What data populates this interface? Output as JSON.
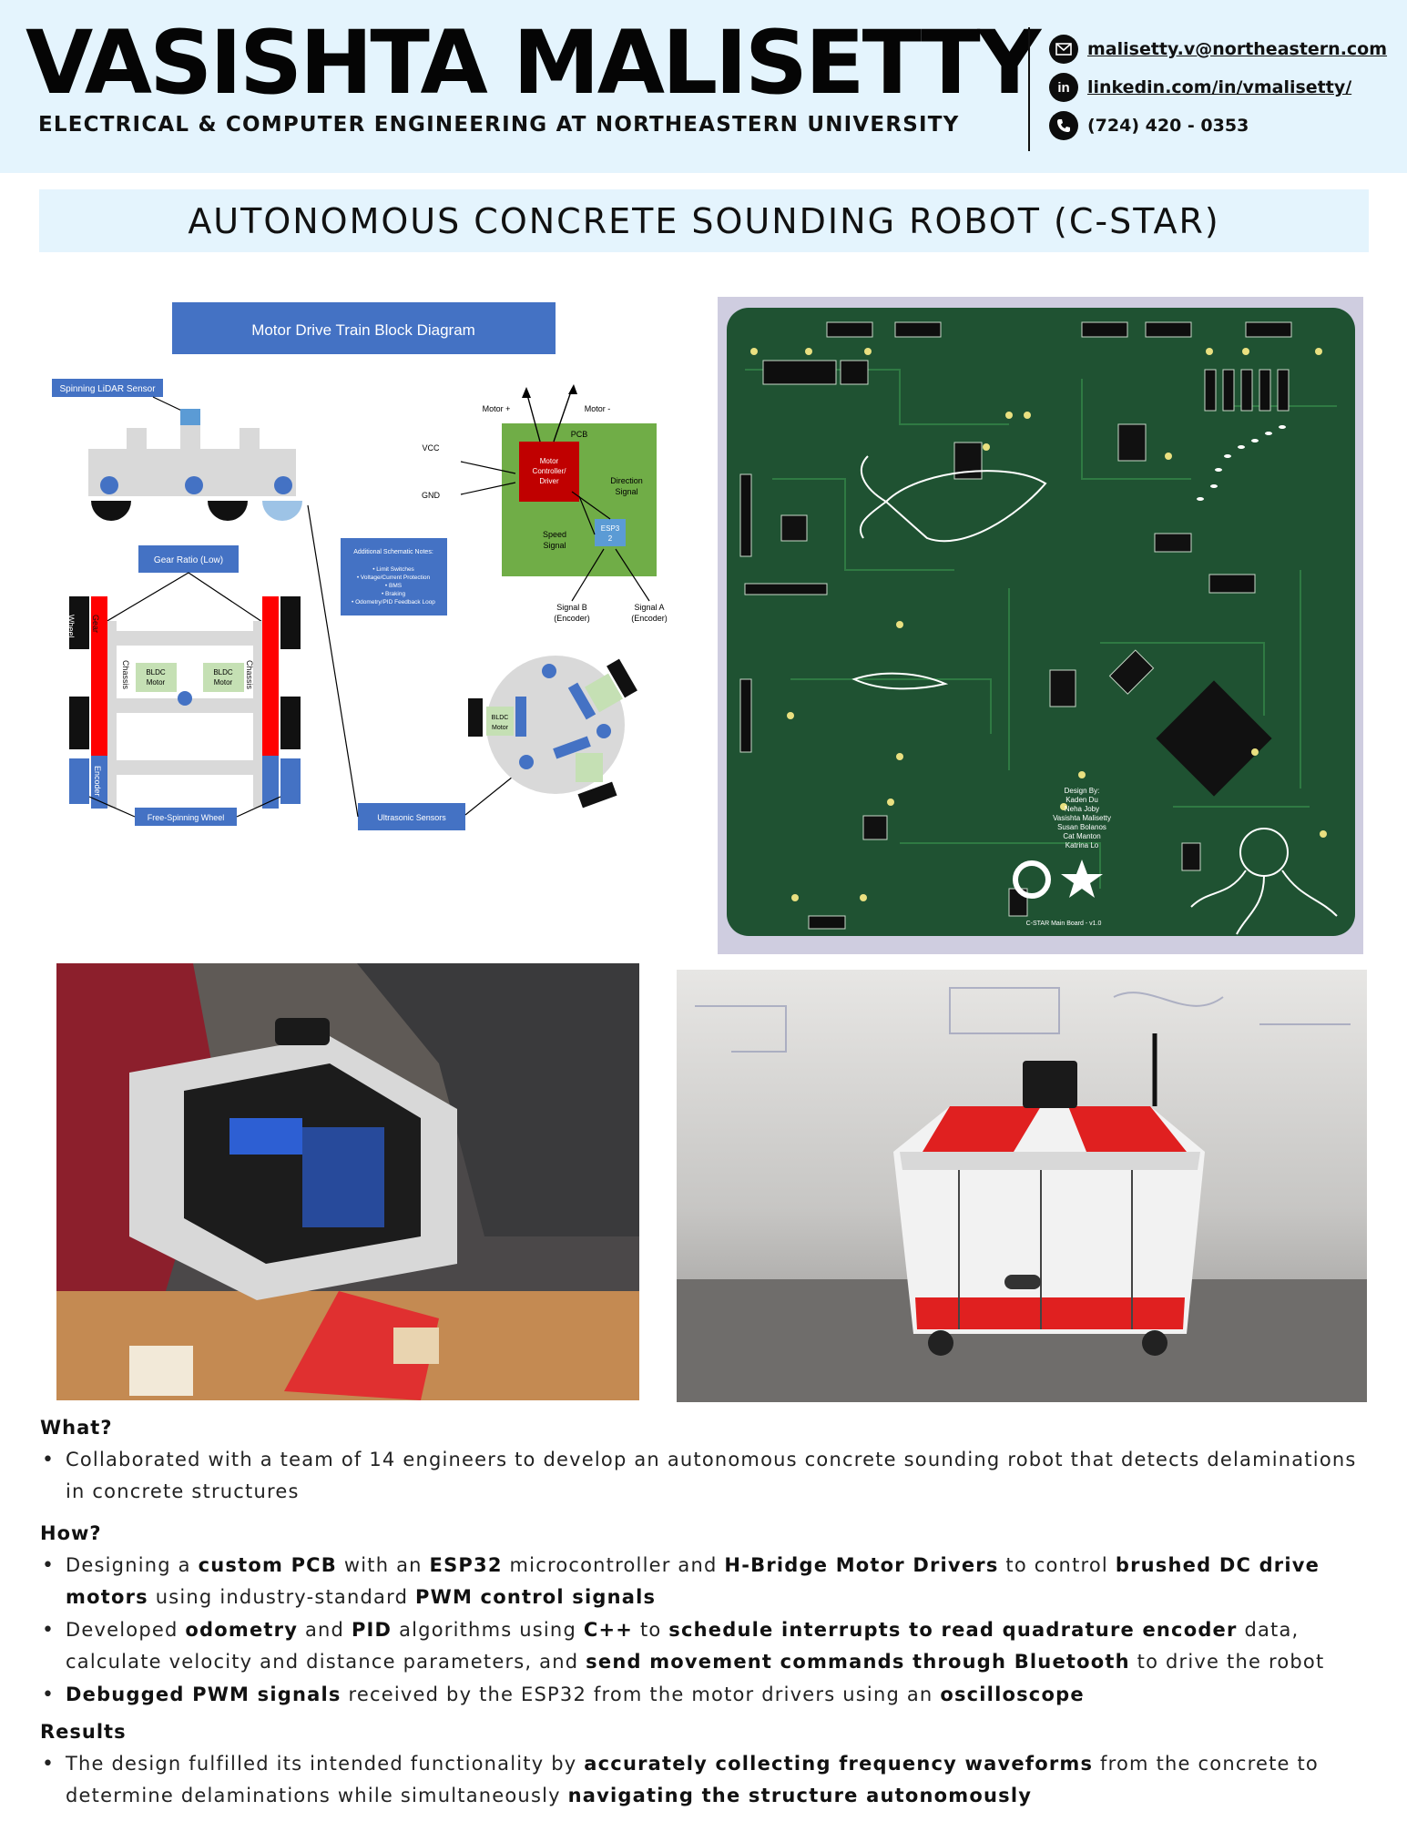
{
  "header": {
    "name": "VASISHTA MALISETTY",
    "subtitle": "ELECTRICAL & COMPUTER ENGINEERING AT NORTHEASTERN UNIVERSITY",
    "contacts": {
      "email": "malisetty.v@northeastern.com",
      "linkedin": "linkedin.com/in/vmalisetty/",
      "phone": "(724) 420 - 0353"
    }
  },
  "project_title": "AUTONOMOUS CONCRETE SOUNDING ROBOT (C-STAR)",
  "diagram": {
    "title": "Motor Drive Train Block Diagram",
    "lidar_label": "Spinning LiDAR Sensor",
    "gear_ratio": "Gear Ratio (Low)",
    "free_wheel": "Free-Spinning Wheel",
    "ultrasonic": "Ultrasonic Sensors",
    "notes_title": "Additional Schematic Notes:",
    "notes": [
      "• Limit Switches",
      "• Voltage/Current Protection",
      "• BMS",
      "• Braking",
      "• Odometry/PID Feedback Loop"
    ],
    "motor_plus": "Motor +",
    "motor_minus": "Motor -",
    "pcb": "PCB",
    "vcc": "VCC",
    "gnd": "GND",
    "driver_l1": "Motor",
    "driver_l2": "Controller/",
    "driver_l3": "Driver",
    "direction_l1": "Direction",
    "direction_l2": "Signal",
    "speed_l1": "Speed",
    "speed_l2": "Signal",
    "esp_l1": "ESP3",
    "esp_l2": "2",
    "signal_b_l1": "Signal B",
    "signal_b_l2": "(Encoder)",
    "signal_a_l1": "Signal A",
    "signal_a_l2": "(Encoder)",
    "wheel": "Wheel",
    "gear": "Gear",
    "chassis": "Chassis",
    "bldc_l1": "BLDC",
    "bldc_l2": "Motor",
    "encoder": "Encoder"
  },
  "pcb": {
    "credits": [
      "Design By:",
      "Kaden Du",
      "Neha Joby",
      "Vasishta Malisetty",
      "Susan Bolanos",
      "Cat Manton",
      "Katrina Lo"
    ],
    "board_name": "C-STAR Main Board - v1.0"
  },
  "what": {
    "heading": "What?",
    "bullet": "Collaborated with a team of 14 engineers to develop an autonomous concrete sounding robot that detects delaminations in concrete structures"
  },
  "how": {
    "heading": "How?",
    "b1": {
      "t1": "Designing a ",
      "k1": "custom PCB",
      "t2": " with an ",
      "k2": "ESP32",
      "t3": " microcontroller and ",
      "k3": "H-Bridge Motor Drivers",
      "t4": " to control ",
      "k4": "brushed DC drive motors",
      "t5": " using industry-standard ",
      "k5": "PWM control signals"
    },
    "b2": {
      "t1": "Developed ",
      "k1": "odometry",
      "t2": " and ",
      "k2": "PID",
      "t3": " algorithms using ",
      "k3": "C++",
      "t4": " to ",
      "k4": "schedule interrupts to read quadrature encoder",
      "t5": " data, calculate velocity and distance parameters, and ",
      "k5": "send movement commands through Bluetooth",
      "t6": " to drive the robot"
    },
    "b3": {
      "k1": "Debugged PWM signals",
      "t1": " received by the ESP32 from the motor drivers using an ",
      "k2": "oscilloscope"
    }
  },
  "results": {
    "heading": "Results",
    "t1": "The design fulfilled its intended functionality by ",
    "k1": "accurately collecting frequency waveforms",
    "t2": " from the concrete to determine delaminations while simultaneously ",
    "k2": "navigating the structure autonomously"
  }
}
